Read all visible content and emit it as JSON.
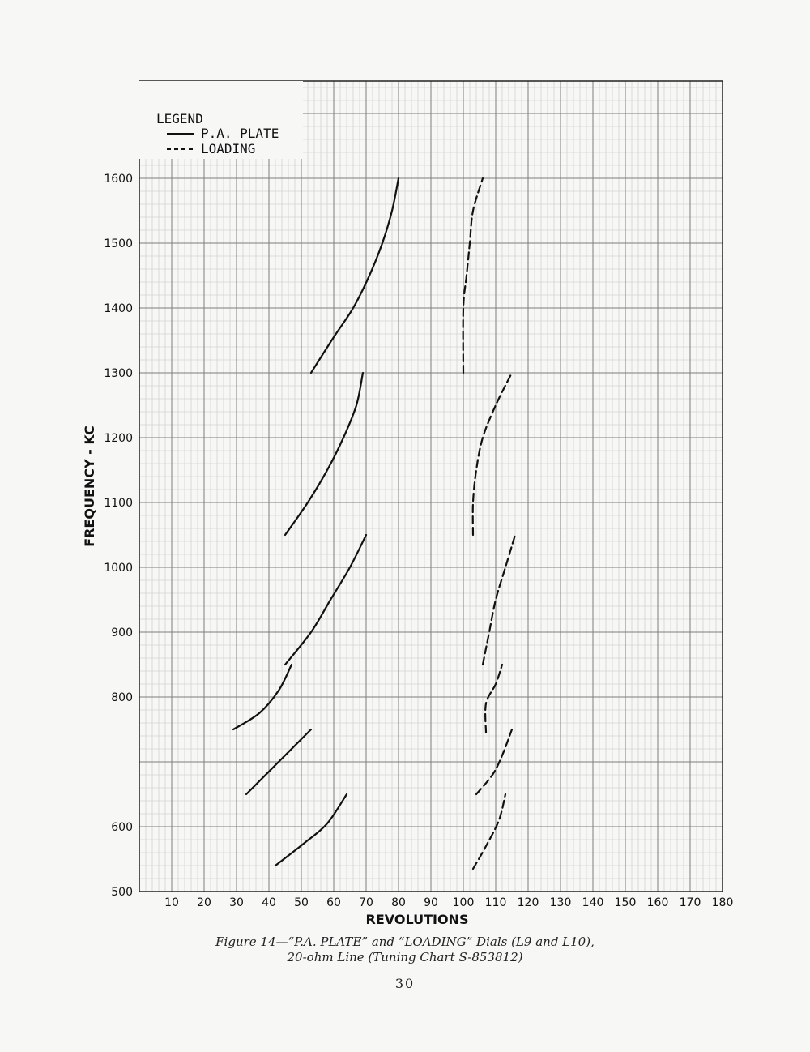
{
  "chart_data": {
    "type": "line",
    "title": "",
    "xlabel": "REVOLUTIONS",
    "ylabel": "FREQUENCY - KC",
    "xlim": [
      0,
      180
    ],
    "ylim": [
      500,
      1600
    ],
    "x_ticks": [
      10,
      20,
      30,
      40,
      50,
      60,
      70,
      80,
      90,
      100,
      110,
      120,
      130,
      140,
      150,
      160,
      170,
      180
    ],
    "y_ticks": [
      500,
      600,
      700,
      800,
      900,
      1000,
      1100,
      1200,
      1300,
      1400,
      1500,
      1600
    ],
    "y_tick_labels": [
      "500",
      "600",
      "",
      "800",
      "900",
      "1000",
      "1100",
      "1200",
      "1300",
      "1400",
      "1500",
      "1600"
    ],
    "grid": true,
    "legend": {
      "title": "LEGEND",
      "placement": "top-left",
      "entries": [
        {
          "label": "P.A. PLATE",
          "style": "solid"
        },
        {
          "label": "LOADING",
          "style": "dashed"
        }
      ]
    },
    "series": [
      {
        "name": "P.A. PLATE",
        "style": "solid",
        "segments": [
          [
            [
              53,
              1300
            ],
            [
              60,
              1355
            ],
            [
              66,
              1400
            ],
            [
              71,
              1450
            ],
            [
              75,
              1500
            ],
            [
              78,
              1550
            ],
            [
              80,
              1600
            ]
          ],
          [
            [
              45,
              1050
            ],
            [
              52,
              1100
            ],
            [
              58,
              1150
            ],
            [
              63,
              1200
            ],
            [
              67,
              1250
            ],
            [
              69,
              1300
            ]
          ],
          [
            [
              45,
              850
            ],
            [
              53,
              900
            ],
            [
              59,
              950
            ],
            [
              65,
              1000
            ],
            [
              70,
              1050
            ]
          ],
          [
            [
              29,
              750
            ],
            [
              37,
              775
            ],
            [
              43,
              810
            ],
            [
              47,
              850
            ]
          ],
          [
            [
              33,
              650
            ],
            [
              43,
              700
            ],
            [
              53,
              750
            ]
          ],
          [
            [
              42,
              540
            ],
            [
              51,
              575
            ],
            [
              58,
              605
            ],
            [
              64,
              650
            ]
          ]
        ]
      },
      {
        "name": "LOADING",
        "style": "dashed",
        "segments": [
          [
            [
              100,
              1300
            ],
            [
              100,
              1400
            ],
            [
              101,
              1450
            ],
            [
              102,
              1500
            ],
            [
              103,
              1550
            ],
            [
              106,
              1600
            ]
          ],
          [
            [
              103,
              1050
            ],
            [
              103,
              1100
            ],
            [
              104,
              1150
            ],
            [
              106,
              1200
            ],
            [
              110,
              1250
            ],
            [
              115,
              1300
            ]
          ],
          [
            [
              106,
              850
            ],
            [
              108,
              900
            ],
            [
              110,
              950
            ],
            [
              113,
              1000
            ],
            [
              116,
              1050
            ]
          ],
          [
            [
              107,
              745
            ],
            [
              107,
              790
            ],
            [
              110,
              820
            ],
            [
              112,
              850
            ]
          ],
          [
            [
              104,
              650
            ],
            [
              109,
              680
            ],
            [
              112,
              710
            ],
            [
              115,
              750
            ]
          ],
          [
            [
              103,
              535
            ],
            [
              107,
              570
            ],
            [
              111,
              610
            ],
            [
              113,
              650
            ]
          ]
        ]
      }
    ]
  },
  "caption": {
    "line1": "Figure 14—“P.A. PLATE” and “LOADING” Dials (L9 and L10),",
    "line2": "20-ohm Line (Tuning Chart S-853812)"
  },
  "page_number": "30"
}
